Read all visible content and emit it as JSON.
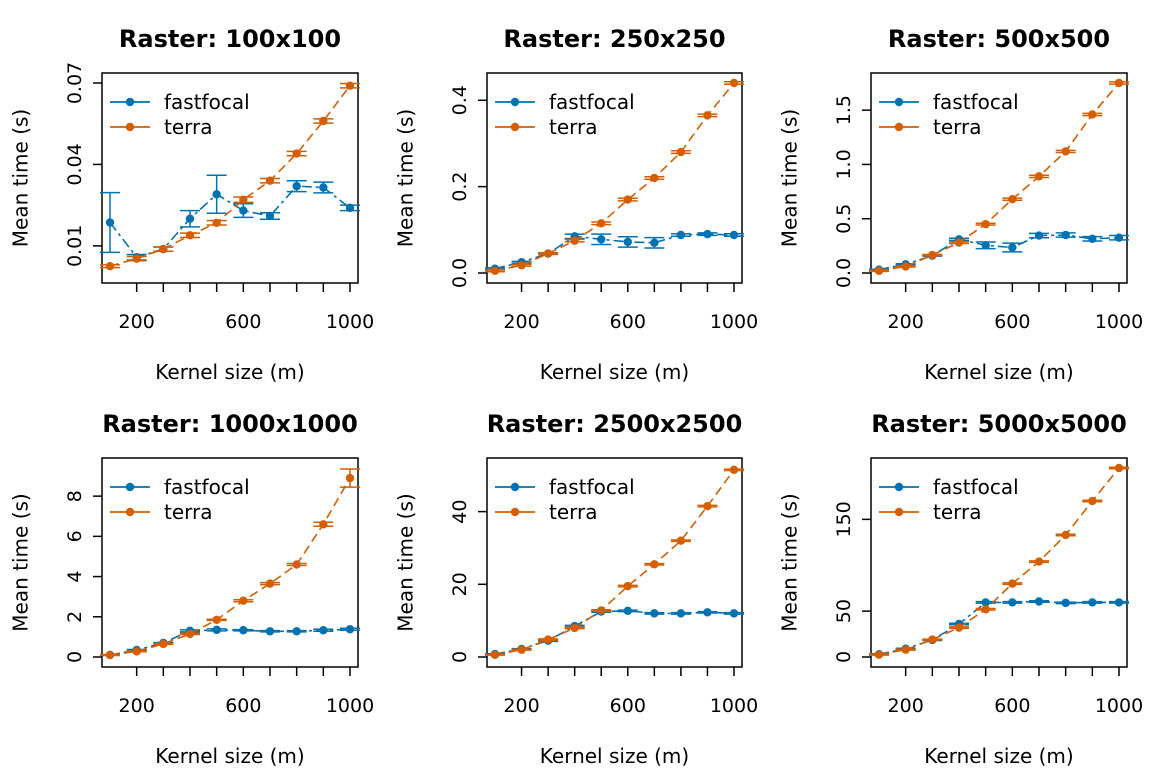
{
  "colors": {
    "fastfocal": "#0072B2",
    "terra": "#D55E00"
  },
  "chart_data": [
    {
      "type": "line",
      "title": "Raster: 100x100",
      "xlabel": "Kernel size (m)",
      "ylabel": "Mean time (s)",
      "xlim": [
        100,
        1000
      ],
      "ylim": [
        0.0,
        0.07
      ],
      "xticks": [
        "200",
        "600",
        "1000"
      ],
      "yticks": [
        "0.01",
        "0.04",
        "0.07"
      ],
      "legend": "top-left",
      "x": [
        100,
        200,
        300,
        400,
        500,
        600,
        700,
        800,
        900,
        1000
      ],
      "series": [
        {
          "name": "fastfocal",
          "color": "#0072B2",
          "values": [
            0.0186,
            0.0058,
            0.0088,
            0.02,
            0.029,
            0.023,
            0.021,
            0.032,
            0.0315,
            0.024
          ],
          "err": [
            0.011,
            0.001,
            0.0008,
            0.003,
            0.007,
            0.0025,
            0.0012,
            0.002,
            0.002,
            0.001
          ]
        },
        {
          "name": "terra",
          "color": "#D55E00",
          "values": [
            0.0025,
            0.0053,
            0.0088,
            0.0139,
            0.0185,
            0.027,
            0.034,
            0.044,
            0.056,
            0.069
          ],
          "err": [
            0.0005,
            0.0008,
            0.0008,
            0.0008,
            0.0008,
            0.001,
            0.0008,
            0.0008,
            0.0008,
            0.0008
          ]
        }
      ]
    },
    {
      "type": "line",
      "title": "Raster: 250x250",
      "xlabel": "Kernel size (m)",
      "ylabel": "Mean time (s)",
      "xlim": [
        100,
        1000
      ],
      "ylim": [
        0.0,
        0.44
      ],
      "xticks": [
        "200",
        "600",
        "1000"
      ],
      "yticks": [
        "0.0",
        "0.2",
        "0.4"
      ],
      "legend": "top-left",
      "x": [
        100,
        200,
        300,
        400,
        500,
        600,
        700,
        800,
        900,
        1000
      ],
      "series": [
        {
          "name": "fastfocal",
          "color": "#0072B2",
          "values": [
            0.01,
            0.025,
            0.045,
            0.085,
            0.078,
            0.072,
            0.07,
            0.088,
            0.09,
            0.088
          ],
          "err": [
            0.002,
            0.002,
            0.002,
            0.005,
            0.012,
            0.012,
            0.012,
            0.003,
            0.003,
            0.003
          ]
        },
        {
          "name": "terra",
          "color": "#D55E00",
          "values": [
            0.005,
            0.018,
            0.045,
            0.075,
            0.115,
            0.17,
            0.22,
            0.28,
            0.365,
            0.44
          ],
          "err": [
            0.002,
            0.002,
            0.002,
            0.003,
            0.003,
            0.003,
            0.003,
            0.003,
            0.003,
            0.003
          ]
        }
      ]
    },
    {
      "type": "line",
      "title": "Raster: 500x500",
      "xlabel": "Kernel size (m)",
      "ylabel": "Mean time (s)",
      "xlim": [
        100,
        1000
      ],
      "ylim": [
        0.0,
        1.75
      ],
      "xticks": [
        "200",
        "600",
        "1000"
      ],
      "yticks": [
        "0.0",
        "0.5",
        "1.0",
        "1.5"
      ],
      "legend": "top-left",
      "x": [
        100,
        200,
        300,
        400,
        500,
        600,
        700,
        800,
        900,
        1000
      ],
      "series": [
        {
          "name": "fastfocal",
          "color": "#0072B2",
          "values": [
            0.03,
            0.08,
            0.16,
            0.31,
            0.255,
            0.235,
            0.345,
            0.35,
            0.315,
            0.325
          ],
          "err": [
            0.005,
            0.005,
            0.005,
            0.01,
            0.03,
            0.04,
            0.02,
            0.02,
            0.02,
            0.02
          ]
        },
        {
          "name": "terra",
          "color": "#D55E00",
          "values": [
            0.02,
            0.06,
            0.165,
            0.28,
            0.45,
            0.68,
            0.89,
            1.12,
            1.46,
            1.75
          ],
          "err": [
            0.005,
            0.005,
            0.005,
            0.008,
            0.008,
            0.01,
            0.01,
            0.01,
            0.01,
            0.01
          ]
        }
      ]
    },
    {
      "type": "line",
      "title": "Raster: 1000x1000",
      "xlabel": "Kernel size (m)",
      "ylabel": "Mean time (s)",
      "xlim": [
        100,
        1000
      ],
      "ylim": [
        0,
        9.4
      ],
      "xticks": [
        "200",
        "600",
        "1000"
      ],
      "yticks": [
        "0",
        "2",
        "4",
        "6",
        "8"
      ],
      "legend": "top-left",
      "x": [
        100,
        200,
        300,
        400,
        500,
        600,
        700,
        800,
        900,
        1000
      ],
      "series": [
        {
          "name": "fastfocal",
          "color": "#0072B2",
          "values": [
            0.1,
            0.35,
            0.7,
            1.3,
            1.35,
            1.33,
            1.28,
            1.28,
            1.33,
            1.38
          ],
          "err": [
            0.02,
            0.02,
            0.02,
            0.05,
            0.05,
            0.03,
            0.03,
            0.03,
            0.05,
            0.05
          ]
        },
        {
          "name": "terra",
          "color": "#D55E00",
          "values": [
            0.1,
            0.28,
            0.65,
            1.15,
            1.85,
            2.8,
            3.65,
            4.6,
            6.6,
            8.9
          ],
          "err": [
            0.02,
            0.02,
            0.02,
            0.03,
            0.03,
            0.05,
            0.05,
            0.05,
            0.1,
            0.45
          ]
        }
      ]
    },
    {
      "type": "line",
      "title": "Raster: 2500x2500",
      "xlabel": "Kernel size (m)",
      "ylabel": "Mean time (s)",
      "xlim": [
        100,
        1000
      ],
      "ylim": [
        0,
        52
      ],
      "xticks": [
        "200",
        "600",
        "1000"
      ],
      "yticks": [
        "0",
        "20",
        "40"
      ],
      "legend": "top-left",
      "x": [
        100,
        200,
        300,
        400,
        500,
        600,
        700,
        800,
        900,
        1000
      ],
      "series": [
        {
          "name": "fastfocal",
          "color": "#0072B2",
          "values": [
            0.8,
            2.2,
            4.5,
            8.5,
            12.5,
            12.7,
            12.0,
            12.0,
            12.3,
            12.0
          ],
          "err": [
            0.1,
            0.1,
            0.2,
            0.2,
            0.2,
            0.2,
            0.2,
            0.2,
            0.2,
            0.2
          ]
        },
        {
          "name": "terra",
          "color": "#D55E00",
          "values": [
            0.6,
            2.0,
            4.8,
            8.0,
            12.8,
            19.5,
            25.5,
            32.0,
            41.5,
            51.5
          ],
          "err": [
            0.1,
            0.1,
            0.2,
            0.2,
            0.2,
            0.2,
            0.2,
            0.2,
            0.2,
            0.2
          ]
        }
      ]
    },
    {
      "type": "line",
      "title": "Raster: 5000x5000",
      "xlabel": "Kernel size (m)",
      "ylabel": "Mean time (s)",
      "xlim": [
        100,
        1000
      ],
      "ylim": [
        0,
        206
      ],
      "xticks": [
        "200",
        "600",
        "1000"
      ],
      "yticks": [
        "0",
        "50",
        "150"
      ],
      "legend": "top-left",
      "x": [
        100,
        200,
        300,
        400,
        500,
        600,
        700,
        800,
        900,
        1000
      ],
      "series": [
        {
          "name": "fastfocal",
          "color": "#0072B2",
          "values": [
            3.0,
            9.0,
            18.5,
            36.0,
            59.5,
            59.5,
            60.5,
            59.0,
            59.5,
            59.5
          ],
          "err": [
            0.5,
            0.5,
            0.5,
            0.8,
            0.8,
            0.8,
            0.8,
            0.8,
            0.8,
            0.8
          ]
        },
        {
          "name": "terra",
          "color": "#D55E00",
          "values": [
            2.5,
            8.0,
            19.0,
            32.0,
            52.0,
            80.0,
            104.0,
            133.0,
            170.0,
            206.0
          ],
          "err": [
            0.5,
            0.5,
            0.5,
            0.8,
            0.8,
            0.8,
            0.8,
            0.8,
            0.8,
            0.8
          ]
        }
      ]
    }
  ]
}
